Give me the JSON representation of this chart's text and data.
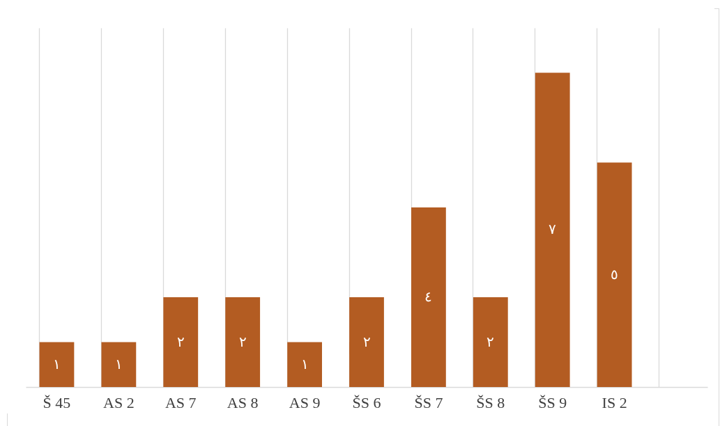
{
  "chart_data": {
    "type": "bar",
    "categories": [
      "Š 45",
      "AS 2",
      "AS 7",
      "AS 8",
      "AS 9",
      "ŠS 6",
      "ŠS 7",
      "ŠS 8",
      "ŠS 9",
      "IS 2",
      null
    ],
    "values": [
      1,
      1,
      2,
      2,
      1,
      2,
      4,
      2,
      7,
      5,
      null
    ],
    "value_labels": [
      "١",
      "١",
      "٢",
      "٢",
      "١",
      "٢",
      "٤",
      "٢",
      "٧",
      "٥",
      null
    ],
    "color": "#b35c22",
    "ylim": [
      0,
      8
    ],
    "grid": "x",
    "tick_labels": "x"
  }
}
